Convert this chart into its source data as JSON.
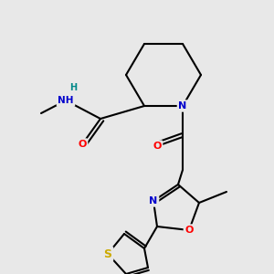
{
  "background_color": "#e8e8e8",
  "bond_color": "#000000",
  "atom_colors": {
    "N": "#0000cc",
    "O": "#ff0000",
    "S": "#ccaa00",
    "H": "#008888"
  },
  "figsize": [
    3.0,
    3.0
  ],
  "dpi": 100
}
